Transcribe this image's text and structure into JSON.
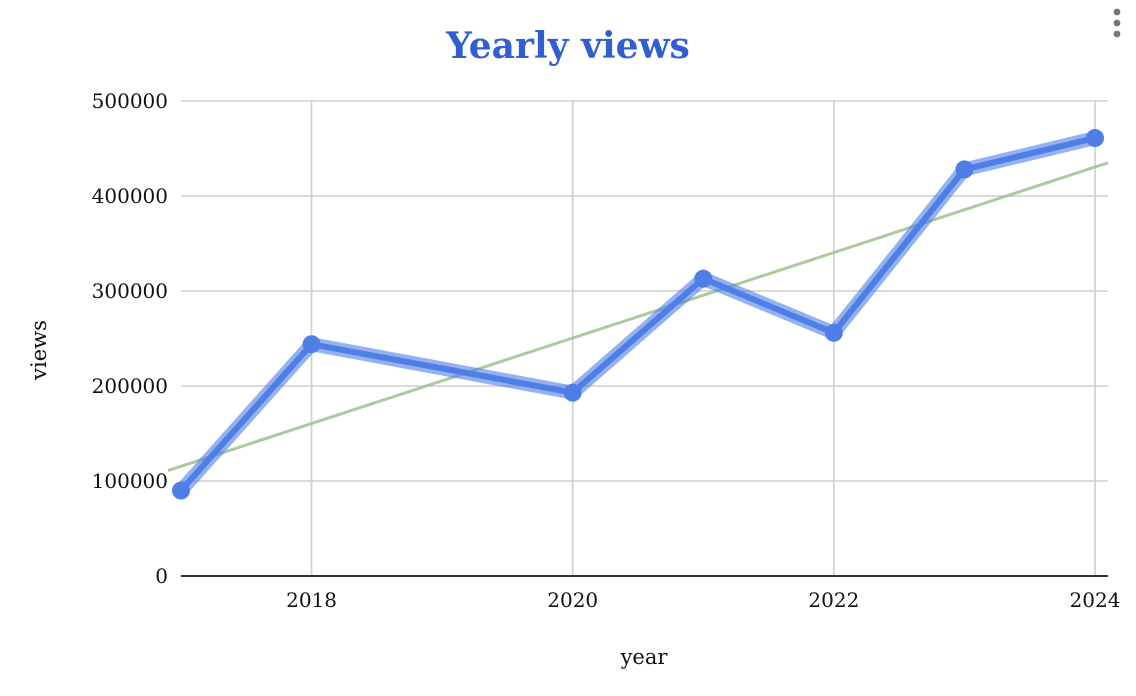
{
  "chart_data": {
    "type": "line",
    "title": "Yearly views",
    "xlabel": "year",
    "ylabel": "views",
    "xlim": [
      2017,
      2024
    ],
    "ylim": [
      0,
      500000
    ],
    "x_ticks": [
      "2018",
      "2020",
      "2022",
      "2024"
    ],
    "y_ticks": [
      "0",
      "100000",
      "200000",
      "300000",
      "400000",
      "500000"
    ],
    "grid": true,
    "legend": "none",
    "series": [
      {
        "x": [
          2017,
          2018,
          2020,
          2021,
          2022,
          2023,
          2024
        ],
        "y": [
          90000,
          244000,
          193000,
          313000,
          256000,
          428000,
          461000
        ],
        "color": "#4f7fe6",
        "marker": "circle"
      }
    ],
    "trendline": {
      "type": "linear",
      "color": "#9fbf8f",
      "start": [
        2016.9,
        111000
      ],
      "end": [
        2024.1,
        435000
      ]
    }
  },
  "menu": {
    "icon": "more-vert-icon"
  }
}
